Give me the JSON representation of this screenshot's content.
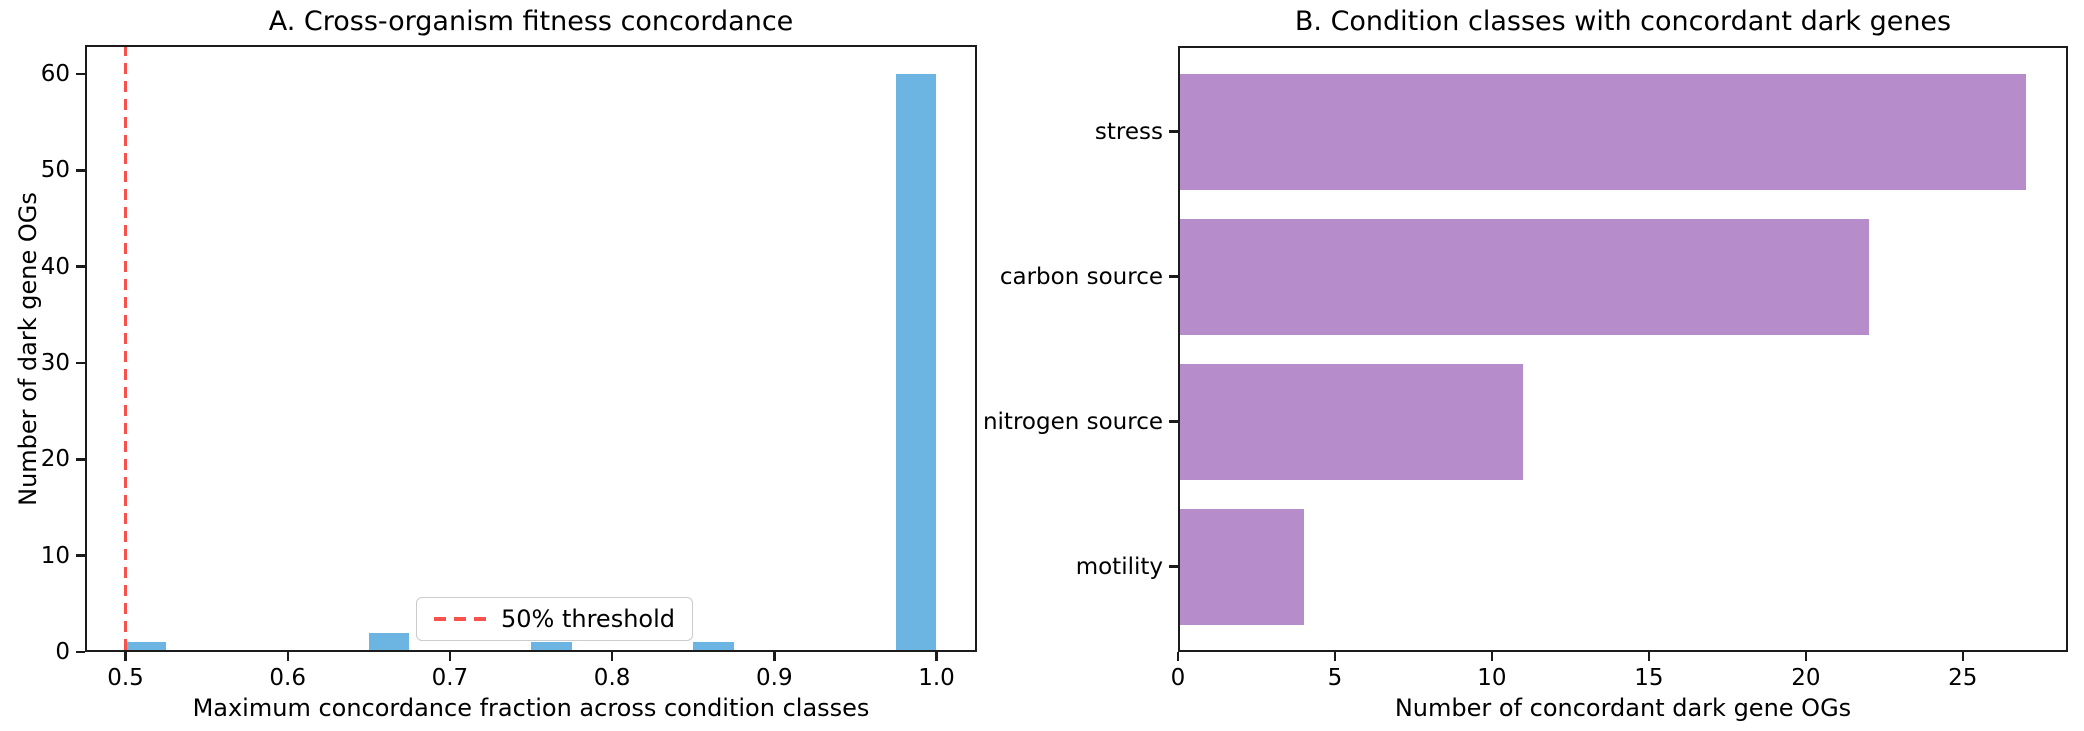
{
  "figure": {
    "background": "#ffffff",
    "text_color": "#000000",
    "spine_color": "#1b1b1b"
  },
  "chart_data": [
    {
      "type": "bar",
      "subtype": "histogram",
      "panel": "A",
      "title": "A. Cross-organism fitness concordance",
      "xlabel": "Maximum concordance fraction across condition classes",
      "ylabel": "Number of dark gene OGs",
      "xlim": [
        0.475,
        1.025
      ],
      "ylim": [
        0,
        63
      ],
      "xticks": [
        "0.5",
        "0.6",
        "0.7",
        "0.8",
        "0.9",
        "1.0"
      ],
      "yticks": [
        "0",
        "10",
        "20",
        "30",
        "40",
        "50",
        "60"
      ],
      "grid": false,
      "bin_width": 0.025,
      "bins": [
        {
          "start": 0.5,
          "count": 1
        },
        {
          "start": 0.65,
          "count": 2
        },
        {
          "start": 0.75,
          "count": 1
        },
        {
          "start": 0.85,
          "count": 1
        },
        {
          "start": 0.975,
          "count": 60
        }
      ],
      "bar_color": "#6cb5e3",
      "threshold": {
        "x": 0.5,
        "color": "#f8504b",
        "linestyle": "dashed"
      },
      "legend": {
        "label": "50% threshold",
        "location": "lower center",
        "marker_color": "#f8504b"
      }
    },
    {
      "type": "bar",
      "subtype": "horizontal-bar",
      "panel": "B",
      "title": "B. Condition classes with concordant dark genes",
      "xlabel": "Number of concordant dark gene OGs",
      "ylabel": "",
      "categories": [
        "stress",
        "carbon source",
        "nitrogen source",
        "motility"
      ],
      "values": [
        27,
        22,
        11,
        4
      ],
      "xlim": [
        0,
        28.35
      ],
      "xticks": [
        "0",
        "5",
        "10",
        "15",
        "20",
        "25"
      ],
      "grid": false,
      "bar_color": "#b68cca",
      "bar_rel_height": 0.8
    }
  ]
}
